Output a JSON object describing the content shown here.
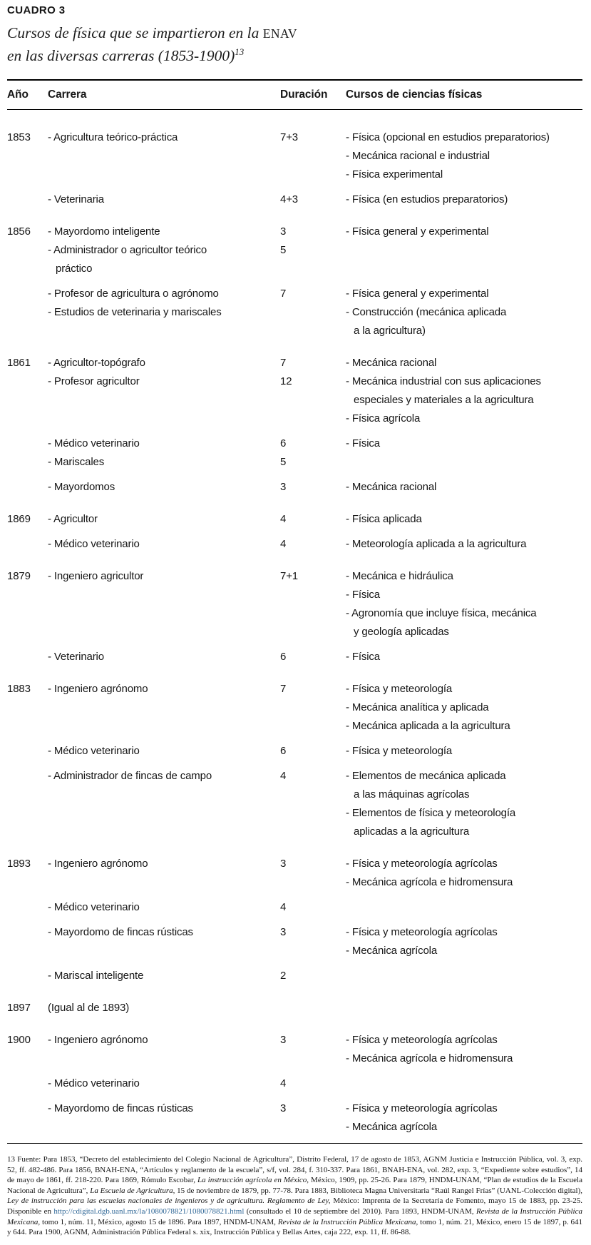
{
  "header": {
    "kicker": "CUADRO 3",
    "title_line1_pre": "Cursos de física que se impartieron en la ",
    "title_enav": "ENAV",
    "title_line2": "en las diversas carreras (1853-1900)",
    "note_ref": "13"
  },
  "table": {
    "columns": [
      "Año",
      "Carrera",
      "Duración",
      "Cursos de ciencias físicas"
    ],
    "groups": [
      {
        "year": "1853",
        "rows": [
          {
            "carrera": "- Agricultura teórico-práctica",
            "duracion": "7+3",
            "tight": false,
            "cursos": [
              "- Física (opcional en estudios preparatorios)",
              "- Mecánica racional e industrial",
              "- Física experimental"
            ]
          },
          {
            "carrera": "- Veterinaria",
            "duracion": "4+3",
            "tight": false,
            "cursos": [
              "- Física (en estudios preparatorios)"
            ]
          }
        ]
      },
      {
        "year": "1856",
        "rows": [
          {
            "carrera": "- Mayordomo inteligente",
            "duracion": "3",
            "tight": false,
            "cursos": [
              "- Física general y experimental"
            ]
          },
          {
            "carrera": "- Administrador o agricultor teórico\npráctico",
            "duracion": "5",
            "tight": true,
            "cursos": []
          },
          {
            "carrera": "- Profesor de agricultura o agrónomo",
            "duracion": "7",
            "tight": false,
            "cursos": [
              "- Física general y experimental"
            ]
          },
          {
            "carrera": "- Estudios de veterinaria y mariscales",
            "duracion": "",
            "tight": true,
            "cursos": [
              "- Construcción (mecánica aplicada\na la agricultura)"
            ]
          }
        ]
      },
      {
        "year": "1861",
        "rows": [
          {
            "carrera": "- Agricultor-topógrafo",
            "duracion": "7",
            "tight": false,
            "cursos": [
              "- Mecánica racional"
            ]
          },
          {
            "carrera": "- Profesor agricultor",
            "duracion": "12",
            "tight": true,
            "cursos": [
              "- Mecánica industrial con sus aplicaciones\nespeciales y materiales a la agricultura",
              "- Física agrícola"
            ]
          },
          {
            "carrera": "- Médico veterinario",
            "duracion": "6",
            "tight": false,
            "cursos": [
              "- Física"
            ]
          },
          {
            "carrera": "- Mariscales",
            "duracion": "5",
            "tight": true,
            "cursos": []
          },
          {
            "carrera": "- Mayordomos",
            "duracion": "3",
            "tight": false,
            "cursos": [
              "- Mecánica racional"
            ]
          }
        ]
      },
      {
        "year": "1869",
        "rows": [
          {
            "carrera": "- Agricultor",
            "duracion": "4",
            "tight": false,
            "cursos": [
              "- Física aplicada"
            ]
          },
          {
            "carrera": "- Médico veterinario",
            "duracion": "4",
            "tight": false,
            "cursos": [
              "- Meteorología aplicada a la agricultura"
            ]
          }
        ]
      },
      {
        "year": "1879",
        "rows": [
          {
            "carrera": "- Ingeniero agricultor",
            "duracion": "7+1",
            "tight": false,
            "cursos": [
              "- Mecánica e hidráulica",
              "- Física",
              "- Agronomía que incluye física, mecánica\ny geología aplicadas"
            ]
          },
          {
            "carrera": "- Veterinario",
            "duracion": "6",
            "tight": false,
            "cursos": [
              "- Física"
            ]
          }
        ]
      },
      {
        "year": "1883",
        "rows": [
          {
            "carrera": "- Ingeniero agrónomo",
            "duracion": "7",
            "tight": false,
            "cursos": [
              "- Física y meteorología",
              "- Mecánica analítica y aplicada",
              "- Mecánica aplicada a la agricultura"
            ]
          },
          {
            "carrera": "- Médico veterinario",
            "duracion": "6",
            "tight": false,
            "cursos": [
              "- Física y meteorología"
            ]
          },
          {
            "carrera": "- Administrador de fincas de campo",
            "duracion": "4",
            "tight": false,
            "cursos": [
              "- Elementos de mecánica aplicada\na las máquinas agrícolas",
              "- Elementos de física y meteorología\naplicadas a la agricultura"
            ]
          }
        ]
      },
      {
        "year": "1893",
        "rows": [
          {
            "carrera": "- Ingeniero agrónomo",
            "duracion": "3",
            "tight": false,
            "cursos": [
              "- Física y meteorología agrícolas",
              "- Mecánica agrícola e hidromensura"
            ]
          },
          {
            "carrera": "- Médico veterinario",
            "duracion": "4",
            "tight": false,
            "cursos": []
          },
          {
            "carrera": "- Mayordomo de fincas rústicas",
            "duracion": "3",
            "tight": false,
            "cursos": [
              "- Física y meteorología agrícolas",
              "- Mecánica agrícola"
            ]
          },
          {
            "carrera": "- Mariscal inteligente",
            "duracion": "2",
            "tight": false,
            "cursos": []
          }
        ]
      },
      {
        "year": "1897",
        "rows": [
          {
            "carrera": "(Igual al de 1893)",
            "duracion": "",
            "tight": false,
            "cursos": []
          }
        ]
      },
      {
        "year": "1900",
        "rows": [
          {
            "carrera": "- Ingeniero agrónomo",
            "duracion": "3",
            "tight": false,
            "cursos": [
              "- Física y meteorología agrícolas",
              "- Mecánica agrícola e hidromensura"
            ]
          },
          {
            "carrera": "- Médico veterinario",
            "duracion": "4",
            "tight": false,
            "cursos": []
          },
          {
            "carrera": "- Mayordomo de fincas rústicas",
            "duracion": "3",
            "tight": false,
            "cursos": [
              "- Física y meteorología agrícolas",
              "- Mecánica agrícola"
            ]
          }
        ]
      }
    ]
  },
  "footnote": {
    "segments": [
      {
        "style": "normal",
        "text": "13 Fuente: Para 1853, “Decreto del establecimiento del Colegio Nacional de Agricultura”, Distrito Federal, 17 de agosto de 1853, AGNM Justicia e Instrucción Pública, vol. 3, exp. 52, ff. 482-486. Para 1856, BNAH-ENA, “Artículos y reglamento de la escuela”, s/f, vol. 284, f. 310-337. Para 1861, BNAH-ENA, vol. 282, exp. 3, “Expediente sobre estudios”, 14 de mayo de 1861, ff. 218-220. Para 1869, Rómulo Escobar, "
      },
      {
        "style": "italic",
        "text": "La instrucción agrícola en México,"
      },
      {
        "style": "normal",
        "text": " México, 1909, pp. 25-26. Para 1879, HNDM-UNAM, “Plan de estudios de la Escuela Nacional de Agricultura”, "
      },
      {
        "style": "italic",
        "text": "La Escuela de Agricultura,"
      },
      {
        "style": "normal",
        "text": " 15 de noviembre de 1879, pp. 77-78. Para 1883, Biblioteca Magna Universitaria “Raúl Rangel Frías” (UANL-Colección digital), "
      },
      {
        "style": "italic",
        "text": "Ley de instrucción para las escuelas nacionales de ingenieros y de agricultura. Reglamento de Ley,"
      },
      {
        "style": "normal",
        "text": " México: Imprenta de la Secretaría de Fomento, mayo 15 de 1883, pp. 23-25. Disponible en "
      },
      {
        "style": "link",
        "text": "http://cdigital.dgb.uanl.mx/la/1080078821/1080078821.html"
      },
      {
        "style": "normal",
        "text": " (consultado el 10 de septiembre del 2010). Para 1893, HNDM-UNAM, "
      },
      {
        "style": "italic",
        "text": "Revista de la Instrucción Pública Mexicana,"
      },
      {
        "style": "normal",
        "text": " tomo 1, núm. 11, México, agosto 15 de 1896. Para 1897, HNDM-UNAM, "
      },
      {
        "style": "italic",
        "text": "Revista de la Instrucción Pública Mexicana,"
      },
      {
        "style": "normal",
        "text": " tomo 1, núm. 21, México, enero 15 de 1897, p. 641 y 644. Para 1900, AGNM, Administración Pública Federal s. xix, Instrucción Pública y Bellas Artes, caja 222, exp. 11, ff. 86-88."
      }
    ],
    "link_color": "#2e6696"
  }
}
